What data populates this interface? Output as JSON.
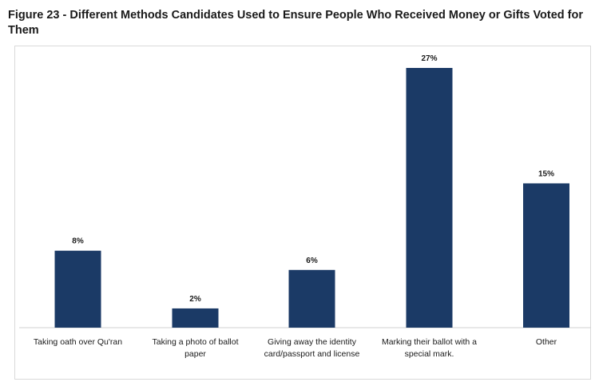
{
  "title": "Figure 23 - Different Methods Candidates Used to Ensure People Who Received Money or Gifts Voted for Them",
  "chart_data": {
    "type": "bar",
    "categories": [
      "Taking oath over Qu'ran",
      "Taking a photo of ballot paper",
      "Giving away the identity card/passport and license",
      "Marking their ballot with a special mark.",
      "Other"
    ],
    "category_lines": [
      [
        "Taking oath over Qu'ran"
      ],
      [
        "Taking a photo of ballot",
        "paper"
      ],
      [
        "Giving away the identity",
        "card/passport and license"
      ],
      [
        "Marking their ballot with a",
        "special mark."
      ],
      [
        "Other"
      ]
    ],
    "values": [
      8,
      2,
      6,
      27,
      15
    ],
    "data_labels": [
      "8%",
      "2%",
      "6%",
      "27%",
      "15%"
    ],
    "ylim": [
      0,
      28
    ],
    "grid": false,
    "legend": "none",
    "bar_color": "#1b3a66"
  }
}
